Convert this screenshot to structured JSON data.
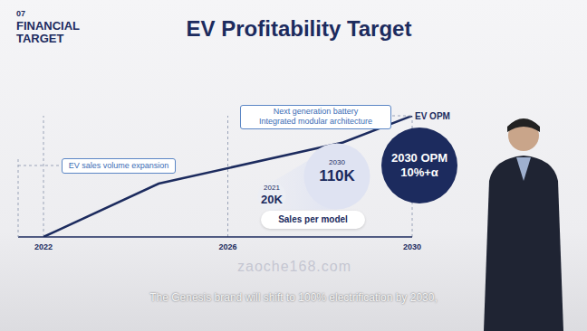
{
  "header": {
    "section": "07",
    "label": "FINANCIAL TARGET"
  },
  "chart_data": {
    "type": "line",
    "title": "EV Profitability Target",
    "x": [
      2022,
      2024.5,
      2028.5,
      2030
    ],
    "values": [
      0,
      44,
      78,
      100
    ],
    "color": "#1c2b5e",
    "xlim": [
      2022,
      2030
    ],
    "xticks": [
      2022,
      2026,
      2030
    ],
    "ylim": [
      0,
      100
    ],
    "tick_labels": "x",
    "grid": false,
    "annotations": {
      "phase1": "EV sales volume expansion",
      "phase2": [
        "Next generation battery",
        "Integrated modular architecture"
      ],
      "end_label": "EV OPM"
    },
    "sales_per_model": {
      "label": "Sales per model",
      "points": [
        {
          "year": 2021,
          "value": 20000,
          "label": "20K"
        },
        {
          "year": 2030,
          "value": 110000,
          "label": "110K"
        }
      ]
    },
    "opm_target": {
      "label": "2030 OPM",
      "text": "10%+α"
    }
  },
  "caption": "The Genesis brand will shift to 100% electrification by 2030,",
  "watermark": "zaoche168.com"
}
